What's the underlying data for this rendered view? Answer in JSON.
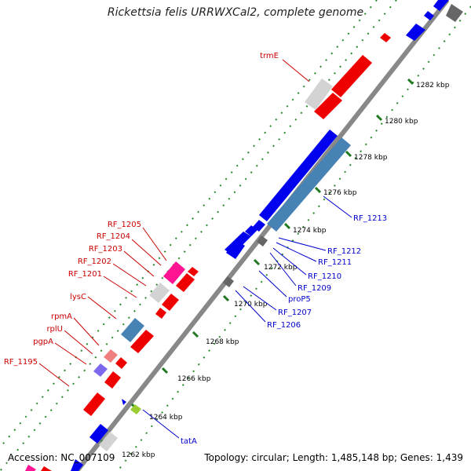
{
  "title": "Rickettsia felis URRWXCal2, complete genome",
  "footer": {
    "accession": "Accession: NC_007109",
    "stats": "Topology: circular; Length: 1,485,148 bp; Genes: 1,439"
  },
  "colors": {
    "backbone": "#888888",
    "forward_genes": "#0000ee",
    "reverse_genes": "#ee0000",
    "label_forward": "#0000cc",
    "label_reverse": "#cc0000",
    "scale_dots": "#2a8a2a",
    "ticks": "#1f7a1f"
  },
  "scale_labels": [
    "1262 kbp",
    "1264 kbp",
    "1266 kbp",
    "1268 kbp",
    "1270 kbp",
    "1272 kbp",
    "1274 kbp",
    "1276 kbp",
    "1278 kbp",
    "1280 kbp",
    "1282 kbp"
  ],
  "gene_labels_right": [
    "RF_1213",
    "RF_1212",
    "RF_1211",
    "RF_1210",
    "RF_1209",
    "proP5",
    "RF_1207",
    "RF_1206",
    "tatA"
  ],
  "gene_labels_left": [
    "trmE",
    "RF_1205",
    "RF_1204",
    "RF_1203",
    "RF_1202",
    "RF_1201",
    "lysC",
    "rpmA",
    "rplU",
    "pgpA",
    "RF_1195"
  ]
}
